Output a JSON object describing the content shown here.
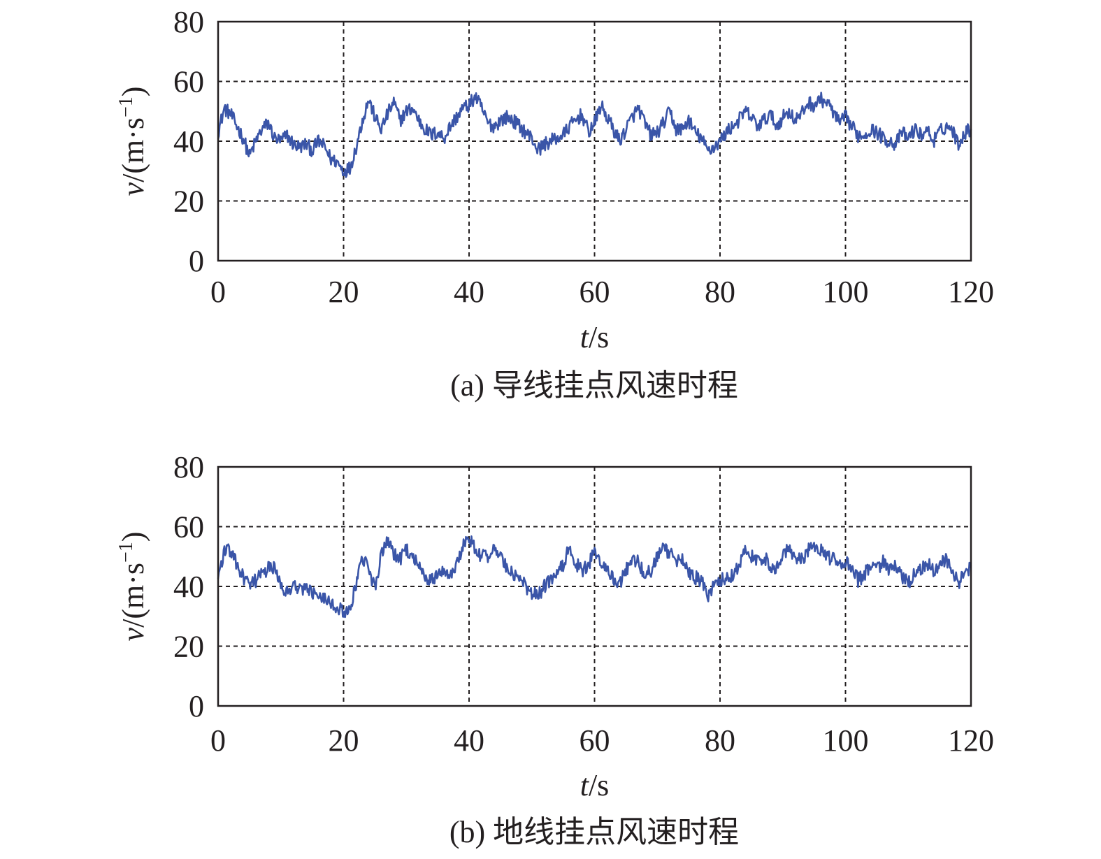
{
  "chart_data": [
    {
      "type": "line",
      "caption": "(a) 导线挂点风速时程",
      "xlabel": {
        "var": "t",
        "unit": "/s"
      },
      "ylabel": {
        "var": "v",
        "unit": "/(m·s",
        "sup": "−1",
        "close": ")"
      },
      "xlim": [
        0,
        120
      ],
      "ylim": [
        0,
        80
      ],
      "xticks": [
        0,
        20,
        40,
        60,
        80,
        100,
        120
      ],
      "yticks": [
        0,
        20,
        40,
        60,
        80
      ],
      "grid": true,
      "color": "#3a55a8",
      "noise_amplitude": 2.4,
      "series": [
        {
          "x": [
            0,
            1,
            2,
            3,
            4,
            5,
            6,
            7,
            8,
            9,
            10,
            11,
            12,
            13,
            14,
            15,
            16,
            17,
            18,
            19,
            20,
            21,
            22,
            23,
            24,
            25,
            26,
            27,
            28,
            29,
            30,
            31,
            32,
            33,
            34,
            35,
            36,
            37,
            38,
            39,
            40,
            41,
            42,
            43,
            44,
            45,
            46,
            47,
            48,
            49,
            50,
            51,
            52,
            53,
            54,
            55,
            56,
            57,
            58,
            59,
            60,
            61,
            62,
            63,
            64,
            65,
            66,
            67,
            68,
            69,
            70,
            71,
            72,
            73,
            74,
            75,
            76,
            77,
            78,
            79,
            80,
            81,
            82,
            83,
            84,
            85,
            86,
            87,
            88,
            89,
            90,
            91,
            92,
            93,
            94,
            95,
            96,
            97,
            98,
            99,
            100,
            101,
            102,
            103,
            104,
            105,
            106,
            107,
            108,
            109,
            110,
            111,
            112,
            113,
            114,
            115,
            116,
            117,
            118,
            119,
            120
          ],
          "values": [
            43,
            51,
            49,
            45,
            41,
            35,
            40,
            44,
            46,
            41,
            40,
            42,
            39,
            38,
            39,
            37,
            40,
            38,
            34,
            33,
            30,
            31,
            38,
            47,
            54,
            48,
            44,
            49,
            53,
            47,
            50,
            51,
            47,
            44,
            42,
            43,
            41,
            45,
            48,
            51,
            52,
            55,
            51,
            46,
            45,
            47,
            48,
            47,
            45,
            43,
            41,
            37,
            39,
            40,
            41,
            42,
            45,
            47,
            49,
            43,
            46,
            52,
            48,
            44,
            40,
            44,
            48,
            51,
            46,
            42,
            43,
            46,
            50,
            44,
            44,
            47,
            43,
            41,
            37,
            38,
            40,
            43,
            45,
            47,
            50,
            48,
            45,
            47,
            49,
            45,
            48,
            50,
            47,
            49,
            53,
            52,
            54,
            53,
            50,
            46,
            48,
            45,
            42,
            42,
            44,
            43,
            41,
            40,
            39,
            43,
            41,
            44,
            42,
            44,
            40,
            43,
            45,
            44,
            39,
            43,
            44
          ]
        }
      ]
    },
    {
      "type": "line",
      "caption": "(b) 地线挂点风速时程",
      "xlabel": {
        "var": "t",
        "unit": "/s"
      },
      "ylabel": {
        "var": "v",
        "unit": "/(m·s",
        "sup": "−1",
        "close": ")"
      },
      "xlim": [
        0,
        120
      ],
      "ylim": [
        0,
        80
      ],
      "xticks": [
        0,
        20,
        40,
        60,
        80,
        100,
        120
      ],
      "yticks": [
        0,
        20,
        40,
        60,
        80
      ],
      "grid": true,
      "color": "#3a55a8",
      "noise_amplitude": 2.4,
      "series": [
        {
          "x": [
            0,
            1,
            2,
            3,
            4,
            5,
            6,
            7,
            8,
            9,
            10,
            11,
            12,
            13,
            14,
            15,
            16,
            17,
            18,
            19,
            20,
            21,
            22,
            23,
            24,
            25,
            26,
            27,
            28,
            29,
            30,
            31,
            32,
            33,
            34,
            35,
            36,
            37,
            38,
            39,
            40,
            41,
            42,
            43,
            44,
            45,
            46,
            47,
            48,
            49,
            50,
            51,
            52,
            53,
            54,
            55,
            56,
            57,
            58,
            59,
            60,
            61,
            62,
            63,
            64,
            65,
            66,
            67,
            68,
            69,
            70,
            71,
            72,
            73,
            74,
            75,
            76,
            77,
            78,
            79,
            80,
            81,
            82,
            83,
            84,
            85,
            86,
            87,
            88,
            89,
            90,
            91,
            92,
            93,
            94,
            95,
            96,
            97,
            98,
            99,
            100,
            101,
            102,
            103,
            104,
            105,
            106,
            107,
            108,
            109,
            110,
            111,
            112,
            113,
            114,
            115,
            116,
            117,
            118,
            119,
            120
          ],
          "values": [
            43,
            52,
            52,
            47,
            43,
            40,
            42,
            44,
            46,
            46,
            41,
            38,
            40,
            40,
            39,
            38,
            38,
            36,
            35,
            33,
            31,
            33,
            40,
            50,
            45,
            40,
            50,
            55,
            51,
            49,
            52,
            51,
            46,
            43,
            42,
            44,
            46,
            44,
            47,
            54,
            56,
            53,
            50,
            50,
            52,
            51,
            46,
            44,
            43,
            40,
            38,
            37,
            40,
            42,
            44,
            47,
            53,
            48,
            45,
            47,
            52,
            48,
            45,
            43,
            41,
            45,
            50,
            48,
            44,
            45,
            50,
            53,
            51,
            49,
            50,
            44,
            43,
            42,
            37,
            40,
            42,
            43,
            44,
            47,
            52,
            50,
            48,
            50,
            47,
            46,
            51,
            53,
            50,
            49,
            52,
            53,
            52,
            50,
            49,
            48,
            48,
            46,
            42,
            44,
            47,
            46,
            48,
            45,
            47,
            43,
            41,
            44,
            46,
            48,
            45,
            48,
            49,
            46,
            41,
            44,
            47
          ]
        }
      ]
    }
  ]
}
